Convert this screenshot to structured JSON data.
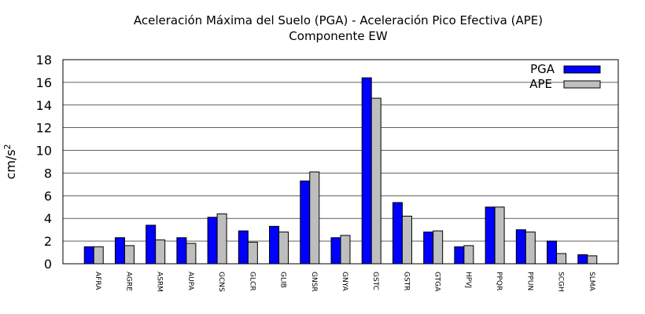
{
  "chart_data": {
    "type": "bar",
    "title_line1": "Aceleración Máxima del Suelo (PGA) -  Aceleración Pico Efectiva (APE)",
    "title_line2": "Componente EW",
    "ylabel_base": "cm/s",
    "ylabel_exp": "2",
    "ylim": [
      0,
      18
    ],
    "yticks": [
      0,
      2,
      4,
      6,
      8,
      10,
      12,
      14,
      16,
      18
    ],
    "grid": true,
    "legend_position": "top-right",
    "categories": [
      "AFRA",
      "AGRE",
      "ASRM",
      "AUPA",
      "GCNS",
      "GLCR",
      "GLIB",
      "GNSR",
      "GNYA",
      "GSTC",
      "GSTR",
      "GTGA",
      "HPVJ",
      "PPQR",
      "PPUN",
      "SCGH",
      "SLMA"
    ],
    "series": [
      {
        "name": "PGA",
        "color": "#0000ff",
        "values": [
          1.5,
          2.3,
          3.4,
          2.3,
          4.1,
          2.9,
          3.3,
          7.3,
          2.3,
          16.4,
          5.4,
          2.8,
          1.5,
          5.0,
          3.0,
          2.0,
          0.8
        ]
      },
      {
        "name": "APE",
        "color": "#bebebe",
        "values": [
          1.5,
          1.6,
          2.1,
          1.8,
          4.4,
          1.9,
          2.8,
          8.1,
          2.5,
          14.6,
          4.2,
          2.9,
          1.6,
          5.0,
          2.8,
          0.9,
          0.7
        ]
      }
    ]
  }
}
